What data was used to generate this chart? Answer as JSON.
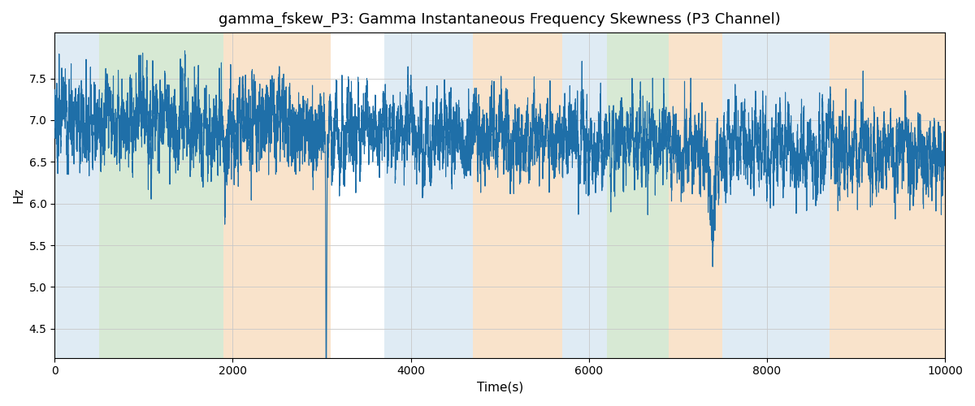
{
  "title": "gamma_fskew_P3: Gamma Instantaneous Frequency Skewness (P3 Channel)",
  "xlabel": "Time(s)",
  "ylabel": "Hz",
  "xlim": [
    0,
    10000
  ],
  "ylim": [
    4.15,
    8.05
  ],
  "line_color": "#1f6fa8",
  "line_width": 0.8,
  "bg_bands": [
    {
      "xmin": 0,
      "xmax": 500,
      "color": "#b8d4e8",
      "alpha": 0.45
    },
    {
      "xmin": 500,
      "xmax": 1900,
      "color": "#a8cfa0",
      "alpha": 0.45
    },
    {
      "xmin": 1900,
      "xmax": 3100,
      "color": "#f5c898",
      "alpha": 0.5
    },
    {
      "xmin": 3700,
      "xmax": 4700,
      "color": "#b8d4e8",
      "alpha": 0.45
    },
    {
      "xmin": 4700,
      "xmax": 5700,
      "color": "#f5c898",
      "alpha": 0.5
    },
    {
      "xmin": 5700,
      "xmax": 6200,
      "color": "#b8d4e8",
      "alpha": 0.45
    },
    {
      "xmin": 6200,
      "xmax": 6900,
      "color": "#a8cfa0",
      "alpha": 0.45
    },
    {
      "xmin": 6900,
      "xmax": 7500,
      "color": "#f5c898",
      "alpha": 0.5
    },
    {
      "xmin": 7500,
      "xmax": 8700,
      "color": "#b8d4e8",
      "alpha": 0.45
    },
    {
      "xmin": 8700,
      "xmax": 10000,
      "color": "#f5c898",
      "alpha": 0.5
    }
  ],
  "yticks": [
    4.5,
    5.0,
    5.5,
    6.0,
    6.5,
    7.0,
    7.5
  ],
  "xticks": [
    0,
    2000,
    4000,
    6000,
    8000,
    10000
  ]
}
